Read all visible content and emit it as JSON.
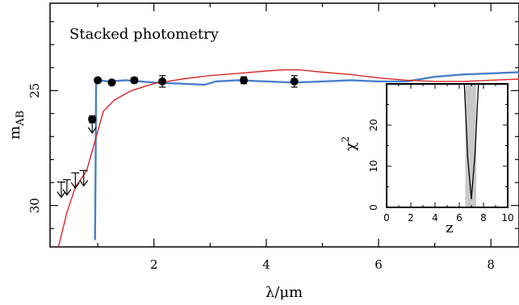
{
  "chart_data": {
    "type": "line",
    "title": "Stacked photometry",
    "xlabel": "λ/μm",
    "ylabel": "m",
    "ylabel_sub": "AB",
    "xlim": [
      0.15,
      8.5
    ],
    "ylim": [
      31.8,
      21.2
    ],
    "y_inverted": true,
    "x_ticks": [
      2,
      4,
      6,
      8
    ],
    "y_ticks": [
      25,
      30
    ],
    "series": [
      {
        "color": "#4a7fc7",
        "x": [
          0.95,
          0.96,
          0.97,
          1.0,
          1.2,
          1.5,
          2.0,
          2.5,
          2.9,
          3.1,
          3.5,
          4.0,
          4.5,
          5.0,
          5.5,
          6.0,
          6.5,
          7.0,
          7.5,
          8.0,
          8.5
        ],
        "y": [
          31.5,
          28.5,
          24.6,
          24.55,
          24.6,
          24.55,
          24.65,
          24.7,
          24.75,
          24.6,
          24.55,
          24.6,
          24.65,
          24.6,
          24.55,
          24.6,
          24.6,
          24.4,
          24.3,
          24.25,
          24.2
        ]
      },
      {
        "color": "#d62728",
        "x": [
          0.3,
          0.45,
          0.6,
          0.8,
          0.95,
          1.1,
          1.3,
          1.6,
          2.0,
          2.5,
          3.0,
          3.5,
          4.0,
          4.3,
          4.6,
          5.0,
          5.5,
          6.0,
          6.5,
          7.0,
          7.5,
          8.0,
          8.5
        ],
        "y": [
          31.8,
          30.3,
          29.2,
          28.5,
          27.2,
          25.9,
          25.4,
          25.0,
          24.7,
          24.5,
          24.35,
          24.25,
          24.15,
          24.1,
          24.1,
          24.2,
          24.3,
          24.45,
          24.55,
          24.6,
          24.6,
          24.55,
          24.5
        ]
      }
    ],
    "photometry": [
      {
        "x": 0.9,
        "y": 26.25,
        "err": 0.15
      },
      {
        "x": 1.0,
        "y": 24.55,
        "err": 0.08
      },
      {
        "x": 1.25,
        "y": 24.65,
        "err": 0.1
      },
      {
        "x": 1.65,
        "y": 24.55,
        "err": 0.12
      },
      {
        "x": 2.15,
        "y": 24.6,
        "err": 0.25
      },
      {
        "x": 3.6,
        "y": 24.55,
        "err": 0.15
      },
      {
        "x": 4.5,
        "y": 24.6,
        "err": 0.25
      }
    ],
    "upper_limits": [
      {
        "x": 0.35,
        "y": 29.4
      },
      {
        "x": 0.45,
        "y": 29.3
      },
      {
        "x": 0.6,
        "y": 29.0
      },
      {
        "x": 0.75,
        "y": 28.9
      },
      {
        "x": 0.9,
        "y": 26.6
      }
    ],
    "inset": {
      "type": "line",
      "xlabel": "z",
      "ylabel": "χ",
      "ylabel_sup": "2",
      "xlim": [
        0,
        10
      ],
      "ylim": [
        0,
        30
      ],
      "x_ticks": [
        0,
        2,
        4,
        6,
        8,
        10
      ],
      "y_ticks": [
        0,
        10,
        20
      ],
      "band": [
        6.5,
        7.4
      ],
      "curve_x": [
        6.4,
        6.7,
        7.0,
        7.3,
        7.6
      ],
      "curve_y": [
        31,
        12,
        2,
        13,
        31
      ]
    }
  }
}
